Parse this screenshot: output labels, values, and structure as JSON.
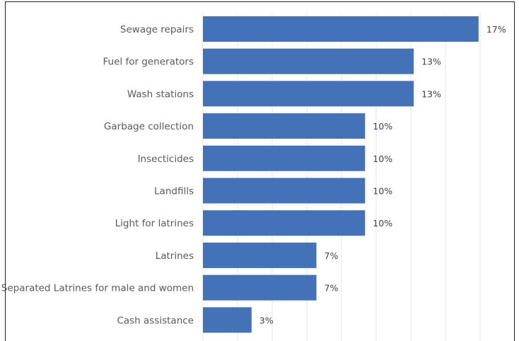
{
  "chart_data": {
    "type": "bar",
    "orientation": "horizontal",
    "categories": [
      "Sewage repairs",
      "Fuel for generators",
      "Wash stations",
      "Garbage collection",
      "Insecticides",
      "Landfills",
      "Light for latrines",
      "Latrines",
      "Separated Latrines for male and women",
      "Cash assistance"
    ],
    "values": [
      17,
      13,
      13,
      10,
      10,
      10,
      10,
      7,
      7,
      3
    ],
    "value_labels": [
      "17%",
      "13%",
      "13%",
      "10%",
      "10%",
      "10%",
      "10%",
      "7%",
      "7%",
      "3%"
    ],
    "unit": "%",
    "xlim": [
      0,
      17.4
    ],
    "grid": true,
    "bar_color": "#4472b8"
  }
}
